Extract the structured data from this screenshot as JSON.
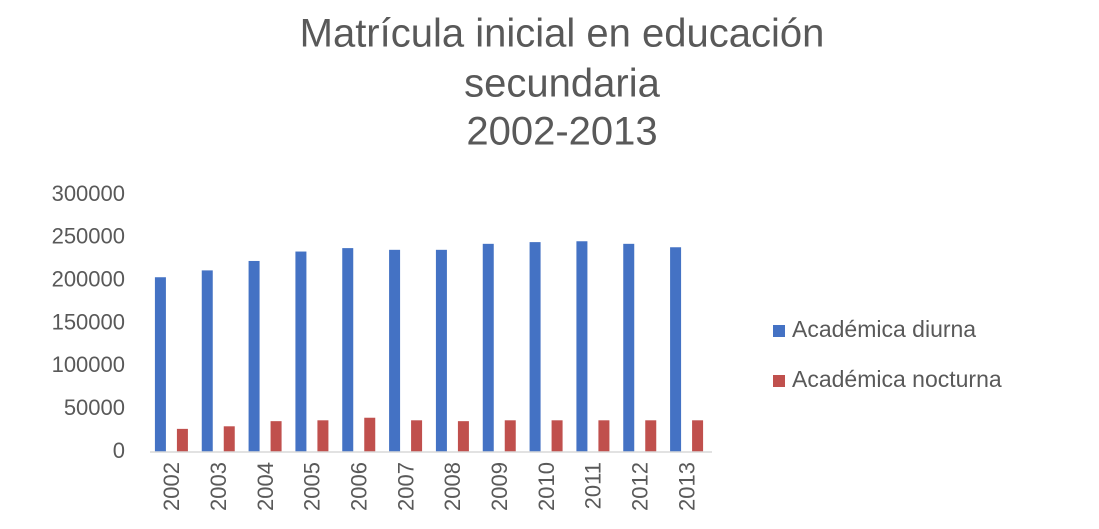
{
  "chart_data": {
    "type": "bar",
    "title": [
      "Matrícula inicial en educación",
      "secundaria",
      "2002-2013"
    ],
    "categories": [
      "2002",
      "2003",
      "2004",
      "2005",
      "2006",
      "2007",
      "2008",
      "2009",
      "2010",
      "2011",
      "2012",
      "2013"
    ],
    "series": [
      {
        "name": "Académica diurna",
        "color": "#4472c4",
        "values": [
          204000,
          212000,
          223000,
          234000,
          238000,
          236000,
          236000,
          243000,
          245000,
          246000,
          243000,
          239000
        ]
      },
      {
        "name": "Académica nocturna",
        "color": "#c0504d",
        "values": [
          27000,
          30000,
          36000,
          37000,
          40000,
          37000,
          36000,
          37000,
          37000,
          37000,
          37000,
          37000
        ]
      }
    ],
    "ylim": [
      0,
      300000
    ],
    "yticks": [
      0,
      50000,
      100000,
      150000,
      200000,
      250000,
      300000
    ],
    "grid": false,
    "legend": "right"
  }
}
